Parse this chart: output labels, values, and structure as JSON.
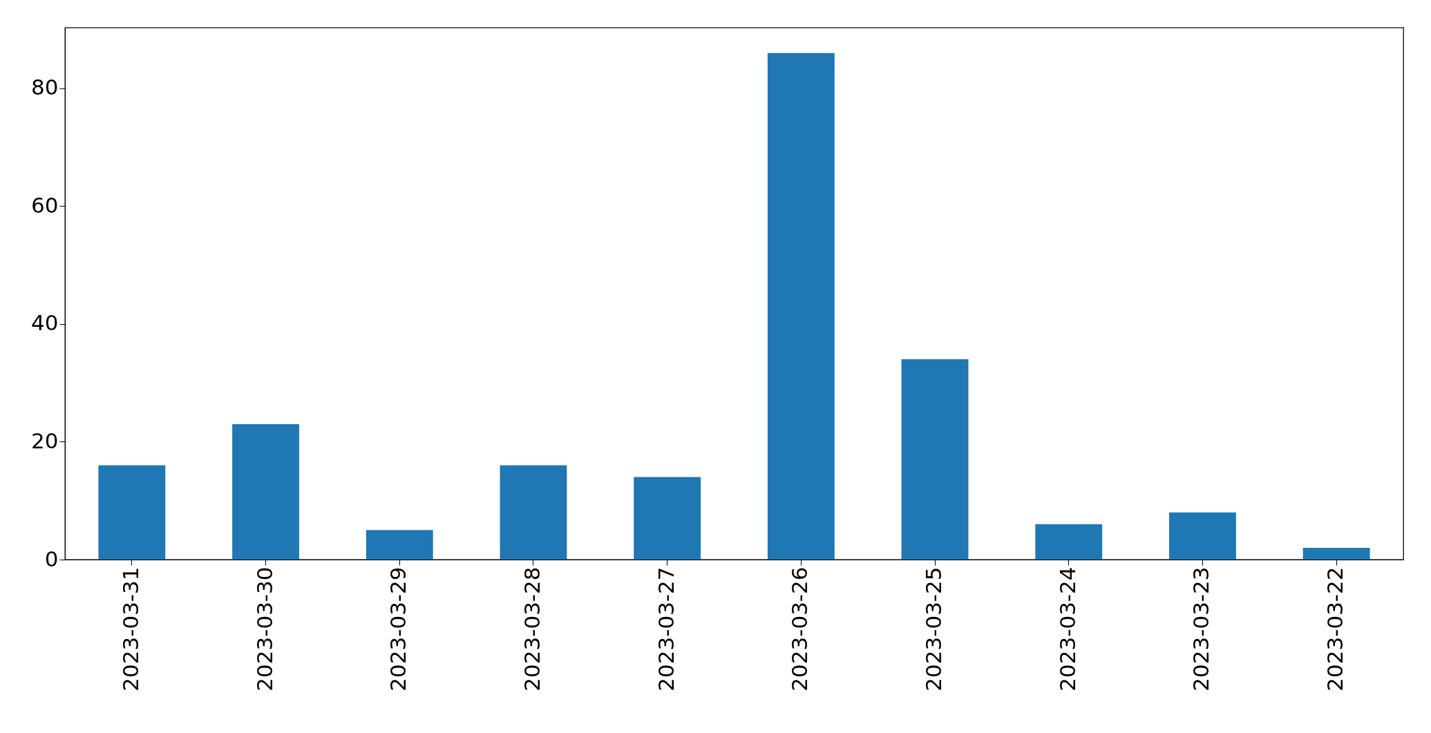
{
  "chart_data": {
    "type": "bar",
    "categories": [
      "2023-03-31",
      "2023-03-30",
      "2023-03-29",
      "2023-03-28",
      "2023-03-27",
      "2023-03-26",
      "2023-03-25",
      "2023-03-24",
      "2023-03-23",
      "2023-03-22"
    ],
    "values": [
      16,
      23,
      5,
      16,
      14,
      86,
      34,
      6,
      8,
      2
    ],
    "color": "#1f77b4",
    "ylim": [
      0,
      90.3
    ],
    "yticks": [
      0,
      20,
      40,
      60,
      80
    ],
    "grid": false
  }
}
